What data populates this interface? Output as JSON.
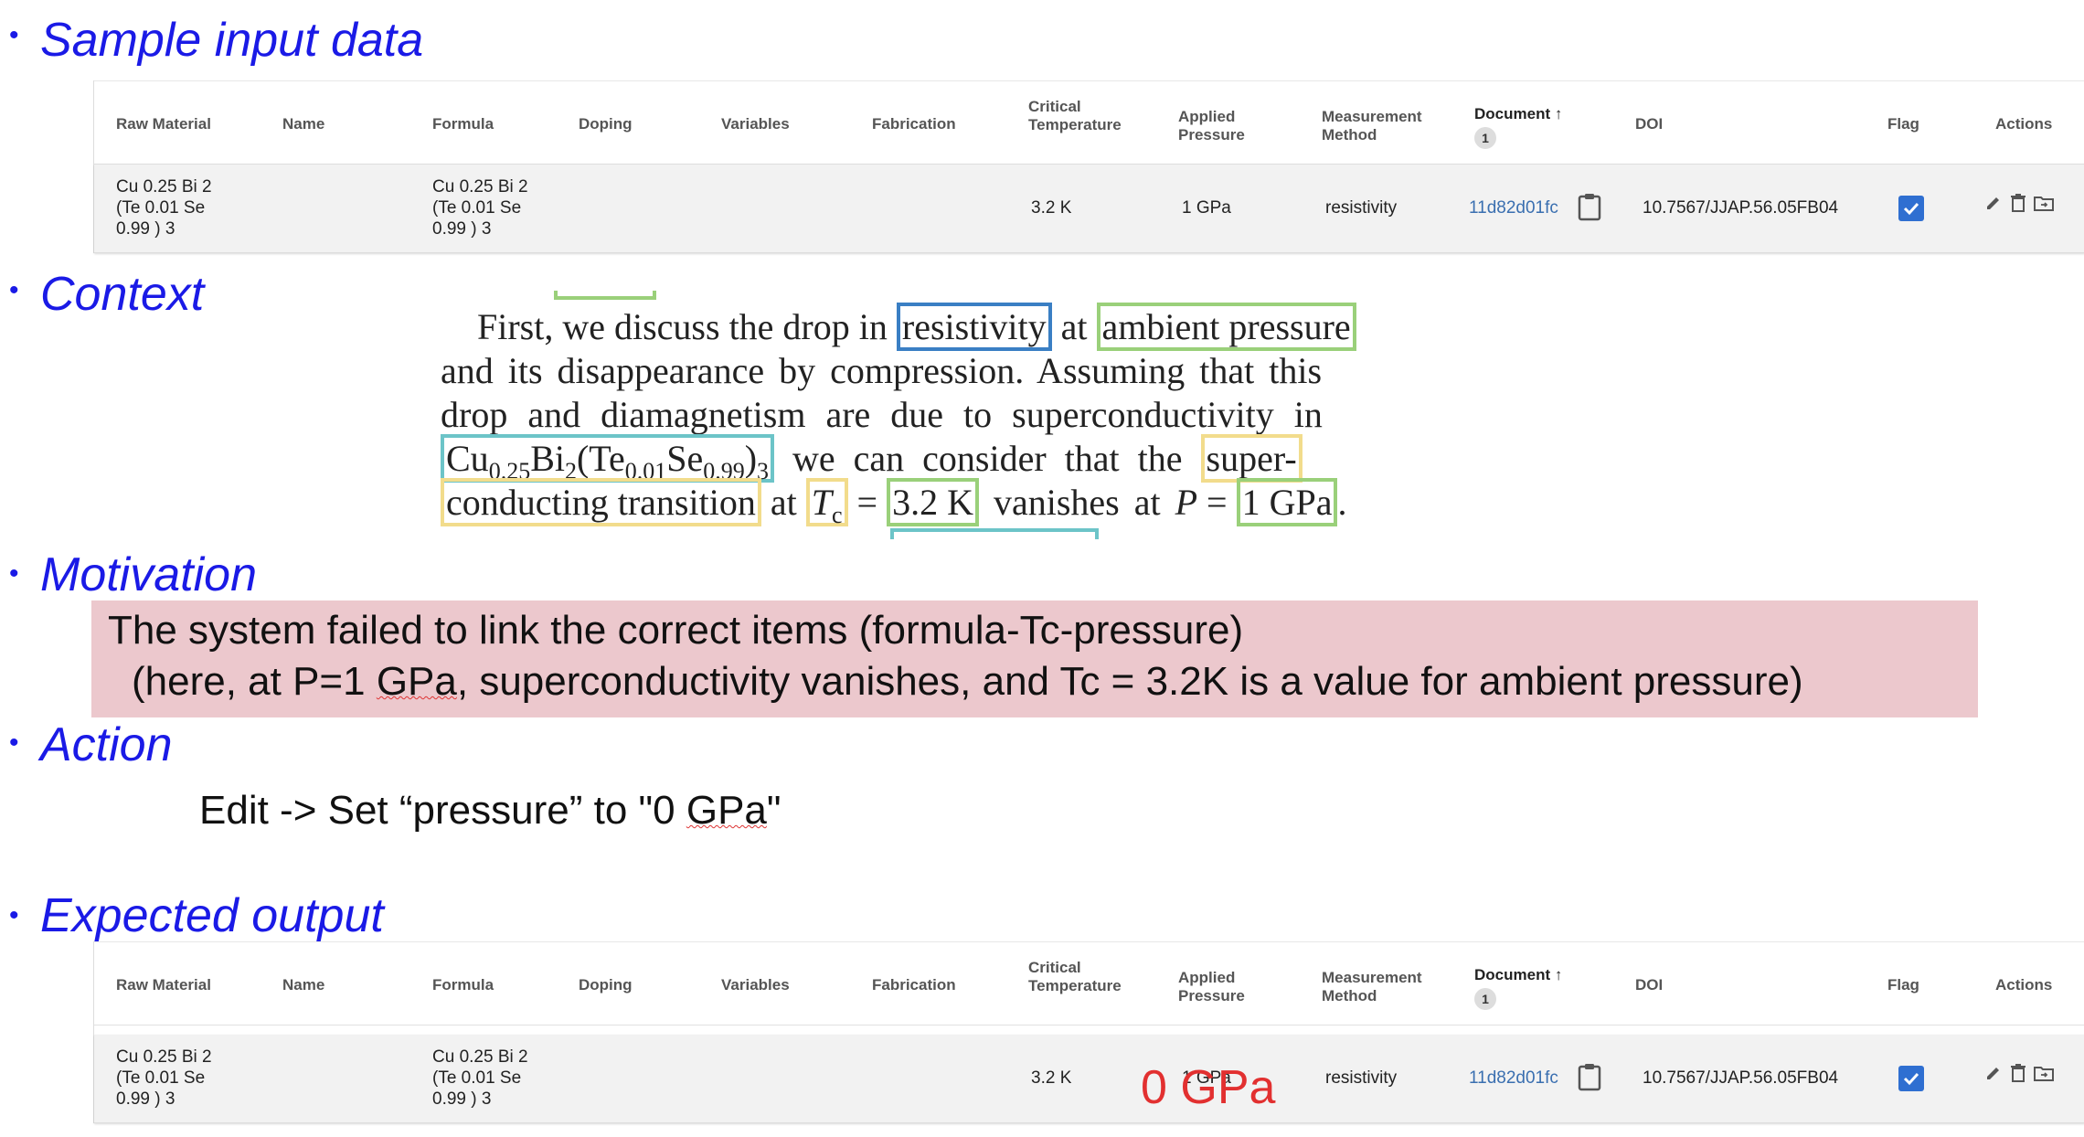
{
  "sections": {
    "sample": "Sample input data",
    "context": "Context",
    "motivation": "Motivation",
    "action": "Action",
    "expected": "Expected output"
  },
  "bullet": "•",
  "table": {
    "headers": {
      "raw_material": "Raw Material",
      "name": "Name",
      "formula": "Formula",
      "doping": "Doping",
      "variables": "Variables",
      "fabrication": "Fabrication",
      "critical_temp_1": "Critical",
      "critical_temp_2": "Temperature",
      "applied_pressure_1": "Applied",
      "applied_pressure_2": "Pressure",
      "measurement_1": "Measurement",
      "measurement_2": "Method",
      "document": "Document ↑",
      "document_badge": "1",
      "doi": "DOI",
      "flag": "Flag",
      "actions": "Actions"
    },
    "row": {
      "raw_material_1": "Cu 0.25 Bi 2",
      "raw_material_2": "(Te 0.01 Se",
      "raw_material_3": "0.99 ) 3",
      "formula_1": "Cu 0.25 Bi 2",
      "formula_2": "(Te 0.01 Se",
      "formula_3": "0.99 ) 3",
      "critical_temperature": "3.2 K",
      "applied_pressure": "1 GPa",
      "measurement_method": "resistivity",
      "document": "11d82d01fc",
      "doi": "10.7567/JJAP.56.05FB04",
      "flag_checked": true
    }
  },
  "context_text": {
    "l1a": "First, we discuss the drop in ",
    "l1b": "resistivity",
    "l1c": " at ",
    "l1d": "ambient pressure",
    "l2": "and its disappearance by compression. Assuming that this",
    "l3": "drop and diamagnetism are due to superconductivity in",
    "l4a": "Cu",
    "l4b": "0.25",
    "l4c": "Bi",
    "l4d": "2",
    "l4e": "(Te",
    "l4f": "0.01",
    "l4g": "Se",
    "l4h": "0.99",
    "l4i": ")",
    "l4j": "3",
    "l4k": "  we can consider that the ",
    "l4l": "super-",
    "l5a": "conducting transition",
    "l5b": " at ",
    "l5c": "T",
    "l5d": "c",
    "l5e": " = ",
    "l5f": "3.2 K",
    "l5g": " vanishes at ",
    "l5h": "P",
    "l5i": " = ",
    "l5j": "1 GPa",
    "l5k": "."
  },
  "motivation": {
    "line1": "The system failed to link the correct items (formula-Tc-pressure)",
    "line2a": "(here, at P=1 ",
    "line2b": "GPa",
    "line2c": ",  superconductivity vanishes, and Tc = 3.2K is a value for ambient pressure)"
  },
  "action": {
    "prefix": "Edit -> Set “pressure” to \"0 ",
    "squiggle": "GPa",
    "suffix": "\""
  },
  "expected_new_value": "0 GPa",
  "colors": {
    "heading": "#1a1ae6",
    "motivation_bg": "#ecc8cd",
    "new_value": "#e23030",
    "link": "#3a6fb0",
    "flag": "#2f6fd1"
  }
}
